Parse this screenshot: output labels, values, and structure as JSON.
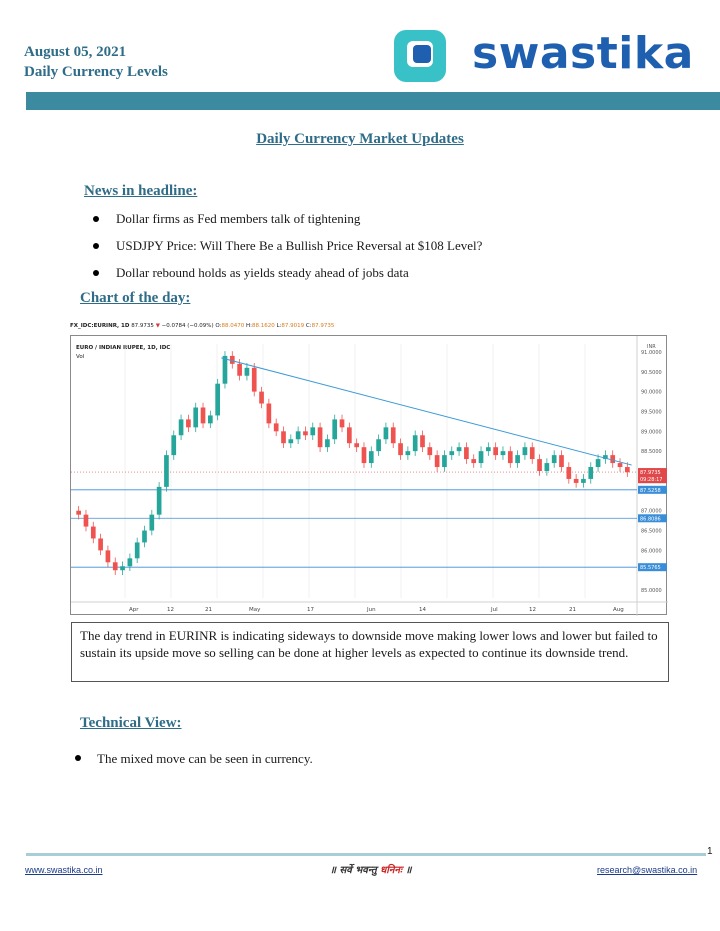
{
  "header": {
    "date": "August 05, 2021",
    "subtitle": "Daily Currency Levels",
    "brand": "swastika"
  },
  "title": "Daily Currency Market Updates",
  "news": {
    "heading": "News in headline:",
    "items": [
      "Dollar firms as Fed members talk of tightening",
      "USDJPY Price: Will There Be a Bullish Price Reversal at $108 Level?",
      "Dollar rebound holds as yields steady ahead of jobs data"
    ]
  },
  "chart_section": {
    "heading": "Chart of the day:"
  },
  "chart_data": {
    "type": "candlestick",
    "symbol": "FX_IDC:EURINR, 1D",
    "last": "87.9735",
    "change": "−0.0784 (−0.09%)",
    "ohlc": {
      "O": "88.0470",
      "H": "88.1620",
      "L": "87.9019",
      "C": "87.9735"
    },
    "legend": "EURO / INDIAN RUPEE, 1D, IDC",
    "vol_label": "Vol",
    "currency_label": "INR",
    "ylim": [
      84.8,
      91.2
    ],
    "y_ticks": [
      "91.0000",
      "90.5000",
      "90.0000",
      "89.5000",
      "89.0000",
      "88.5000",
      "87.0000",
      "86.5000",
      "86.0000",
      "85.0000"
    ],
    "x_ticks": [
      "Apr",
      "12",
      "21",
      "May",
      "17",
      "Jun",
      "14",
      "Jul",
      "12",
      "21",
      "Aug"
    ],
    "price_tags": [
      {
        "value": "87.9735",
        "color": "#e0484a"
      },
      {
        "value": "09:28:17",
        "color": "#e0484a"
      },
      {
        "value": "87.5258",
        "color": "#3a8ed8"
      },
      {
        "value": "86.8086",
        "color": "#3a8ed8"
      },
      {
        "value": "85.5765",
        "color": "#3a8ed8"
      }
    ],
    "horizontal_levels": [
      87.5258,
      86.8086,
      85.5765
    ],
    "trendline": {
      "from": 90.85,
      "to": 88.15
    },
    "closes": [
      86.9,
      86.6,
      86.3,
      86.0,
      85.7,
      85.5,
      85.6,
      85.8,
      86.2,
      86.5,
      86.9,
      87.6,
      88.4,
      88.9,
      89.3,
      89.1,
      89.6,
      89.2,
      89.4,
      90.2,
      90.9,
      90.7,
      90.4,
      90.6,
      90.0,
      89.7,
      89.2,
      89.0,
      88.7,
      88.8,
      89.0,
      88.9,
      89.1,
      88.6,
      88.8,
      89.3,
      89.1,
      88.7,
      88.6,
      88.2,
      88.5,
      88.8,
      89.1,
      88.7,
      88.4,
      88.5,
      88.9,
      88.6,
      88.4,
      88.1,
      88.4,
      88.5,
      88.6,
      88.3,
      88.2,
      88.5,
      88.6,
      88.4,
      88.5,
      88.2,
      88.4,
      88.6,
      88.3,
      88.0,
      88.2,
      88.4,
      88.1,
      87.8,
      87.7,
      87.8,
      88.1,
      88.3,
      88.4,
      88.2,
      88.1,
      87.97
    ]
  },
  "trend_text": "The day trend in EURINR is indicating sideways to downside move making lower lows and lower but failed to sustain its upside move so selling can be done at higher levels as expected to continue its downside trend.",
  "technical": {
    "heading": "Technical View:",
    "items": [
      "The mixed move can be seen in currency."
    ]
  },
  "footer": {
    "page": "1",
    "website": "www.swastika.co.in",
    "email": "research@swastika.co.in",
    "motto_a": "॥ सर्वे भवन्तु",
    "motto_b": "धनिनः",
    "motto_c": "॥"
  },
  "colors": {
    "accent": "#2e6c88",
    "band": "#3c8aa0",
    "brand": "#1f5fb0",
    "up": "#26a69a",
    "down": "#ef5350"
  }
}
